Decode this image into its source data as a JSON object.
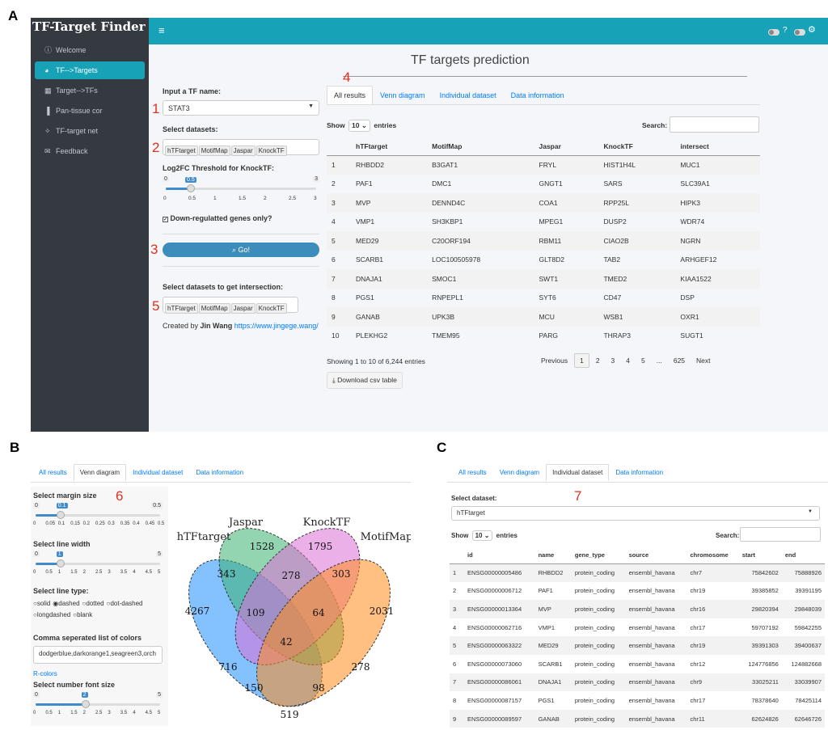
{
  "figure_labels": {
    "a": "A",
    "b": "B",
    "c": "C"
  },
  "annotations": {
    "n1": "1",
    "n2": "2",
    "n3": "3",
    "n4": "4",
    "n5": "5",
    "n6": "6",
    "n7": "7"
  },
  "app": {
    "brand": "TF-Target Finder",
    "title": "TF targets prediction",
    "nav": [
      {
        "icon": "info-icon",
        "glyph": "ⓘ",
        "label": "Welcome"
      },
      {
        "icon": "palette-icon",
        "glyph": "◕",
        "label": "TF-->Targets"
      },
      {
        "icon": "table-icon",
        "glyph": "▦",
        "label": "Target-->TFs"
      },
      {
        "icon": "bar-chart-icon",
        "glyph": "▐",
        "label": "Pan-tissue cor"
      },
      {
        "icon": "network-icon",
        "glyph": "✧",
        "label": "TF-target net"
      },
      {
        "icon": "envelope-icon",
        "glyph": "✉",
        "label": "Feedback"
      }
    ],
    "topbar_icons": [
      "hamburger-icon",
      "toggle-icon",
      "help-icon",
      "toggle-icon",
      "gear-icon"
    ],
    "topbar_glyphs": {
      "hamburger": "≡",
      "help": "?",
      "gear": "⚙"
    }
  },
  "controls": {
    "tf_label": "Input a TF name:",
    "tf_value": "STAT3",
    "datasets_label": "Select datasets:",
    "datasets": [
      "hTFtarget",
      "MotifMap",
      "Jaspar",
      "KnockTF"
    ],
    "log2fc_label": "Log2FC Threshold for KnockTF:",
    "log2fc": {
      "min": "0",
      "max": "3",
      "value": "0.5",
      "fraction": 0.167,
      "ticks": [
        "0",
        "0.5",
        "1",
        "1.5",
        "2",
        "2.5",
        "3"
      ]
    },
    "down_label": "Down-regulatted genes only?",
    "down_checked": true,
    "go_label": "Go!",
    "intersect_label": "Select datasets to get intersection:",
    "intersect": [
      "hTFtarget",
      "MotifMap",
      "Jaspar",
      "KnockTF"
    ],
    "created_prefix": "Created by",
    "created_name": "Jin Wang",
    "created_url": "https://www.jingege.wang/"
  },
  "tabs": [
    "All results",
    "Venn diagram",
    "Individual dataset",
    "Data information"
  ],
  "resultsA": {
    "show_label": "Show",
    "show_value": "10",
    "entries_label": "entries",
    "search_label": "Search:",
    "columns": [
      "",
      "hTFtarget",
      "MotifMap",
      "Jaspar",
      "KnockTF",
      "intersect"
    ],
    "rows": [
      [
        "1",
        "RHBDD2",
        "B3GAT1",
        "FRYL",
        "HIST1H4L",
        "MUC1"
      ],
      [
        "2",
        "PAF1",
        "DMC1",
        "GNGT1",
        "SARS",
        "SLC39A1"
      ],
      [
        "3",
        "MVP",
        "DENND4C",
        "COA1",
        "RPP25L",
        "HIPK3"
      ],
      [
        "4",
        "VMP1",
        "SH3KBP1",
        "MPEG1",
        "DUSP2",
        "WDR74"
      ],
      [
        "5",
        "MED29",
        "C20ORF194",
        "RBM11",
        "CIAO2B",
        "NGRN"
      ],
      [
        "6",
        "SCARB1",
        "LOC100505978",
        "GLT8D2",
        "TAB2",
        "ARHGEF12"
      ],
      [
        "7",
        "DNAJA1",
        "SMOC1",
        "SWT1",
        "TMED2",
        "KIAA1522"
      ],
      [
        "8",
        "PGS1",
        "RNPEPL1",
        "SYT6",
        "CD47",
        "DSP"
      ],
      [
        "9",
        "GANAB",
        "UPK3B",
        "MCU",
        "WSB1",
        "OXR1"
      ],
      [
        "10",
        "PLEKHG2",
        "TMEM95",
        "PARG",
        "THRAP3",
        "SUGT1"
      ]
    ],
    "info": "Showing 1 to 10 of 6,244 entries",
    "pagination": [
      "Previous",
      "1",
      "2",
      "3",
      "4",
      "5",
      "...",
      "625",
      "Next"
    ],
    "download_label": "Download csv table"
  },
  "venn_controls": {
    "margin_label": "Select margin size",
    "margin": {
      "min": "0",
      "max": "0.5",
      "value": "0.1",
      "fraction": 0.2,
      "ticks": [
        "0",
        "0.05",
        "0.1",
        "0.15",
        "0.2",
        "0.25",
        "0.3",
        "0.35",
        "0.4",
        "0.45",
        "0.5"
      ]
    },
    "linewidth_label": "Select line width",
    "linewidth": {
      "min": "0",
      "max": "5",
      "value": "1",
      "fraction": 0.2,
      "ticks": [
        "0",
        "0.5",
        "1",
        "1.5",
        "2",
        "2.5",
        "3",
        "3.5",
        "4",
        "4.5",
        "5"
      ]
    },
    "linetype_label": "Select line type:",
    "linetypes": [
      "solid",
      "dashed",
      "dotted",
      "dot-dashed",
      "longdashed",
      "blank"
    ],
    "linetype_selected": "dashed",
    "colors_label": "Comma seperated list of colors",
    "colors_value": "dodgerblue,darkorange1,seagreen3,orch",
    "rcolors_link": "R-colors",
    "fontsize_label": "Select number font size",
    "fontsize": {
      "min": "0",
      "max": "5",
      "value": "2",
      "fraction": 0.4,
      "ticks": [
        "0",
        "0.5",
        "1",
        "1.5",
        "2",
        "2.5",
        "3",
        "3.5",
        "4",
        "4.5",
        "5"
      ]
    }
  },
  "venn": {
    "sets": [
      "hTFtarget",
      "Jaspar",
      "KnockTF",
      "MotifMap"
    ],
    "colors": [
      "#1e90ff",
      "#3cb371",
      "#da70d6",
      "#ff8c1a"
    ],
    "regions": {
      "h": "4267",
      "j": "1528",
      "k": "1795",
      "m": "2031",
      "hj": "343",
      "jk": "278",
      "km": "303",
      "hm": "519",
      "hjk": "109",
      "jkm": "64",
      "hkm": "150",
      "hjm": "98",
      "hk": "716",
      "jm": "278",
      "all": "42"
    }
  },
  "datasetC": {
    "select_label": "Select dataset:",
    "select_value": "hTFtarget",
    "show_label": "Show",
    "show_value": "10",
    "entries_label": "entries",
    "search_label": "Search:",
    "columns": [
      "",
      "id",
      "name",
      "gene_type",
      "source",
      "chromosome",
      "start",
      "end"
    ],
    "rows": [
      [
        "1",
        "ENSG00000005486",
        "RHBDD2",
        "protein_coding",
        "ensembl_havana",
        "chr7",
        "75842602",
        "75888926"
      ],
      [
        "2",
        "ENSG00000006712",
        "PAF1",
        "protein_coding",
        "ensembl_havana",
        "chr19",
        "39385852",
        "39391195"
      ],
      [
        "3",
        "ENSG00000013364",
        "MVP",
        "protein_coding",
        "ensembl_havana",
        "chr16",
        "29820394",
        "29848039"
      ],
      [
        "4",
        "ENSG00000062716",
        "VMP1",
        "protein_coding",
        "ensembl_havana",
        "chr17",
        "59707192",
        "59842255"
      ],
      [
        "5",
        "ENSG00000063322",
        "MED29",
        "protein_coding",
        "ensembl_havana",
        "chr19",
        "39391303",
        "39400637"
      ],
      [
        "6",
        "ENSG00000073060",
        "SCARB1",
        "protein_coding",
        "ensembl_havana",
        "chr12",
        "124776856",
        "124882668"
      ],
      [
        "7",
        "ENSG00000086061",
        "DNAJA1",
        "protein_coding",
        "ensembl_havana",
        "chr9",
        "33025211",
        "33039907"
      ],
      [
        "8",
        "ENSG00000087157",
        "PGS1",
        "protein_coding",
        "ensembl_havana",
        "chr17",
        "78378640",
        "78425114"
      ],
      [
        "9",
        "ENSG00000089597",
        "GANAB",
        "protein_coding",
        "ensembl_havana",
        "chr11",
        "62624826",
        "62646726"
      ]
    ]
  }
}
